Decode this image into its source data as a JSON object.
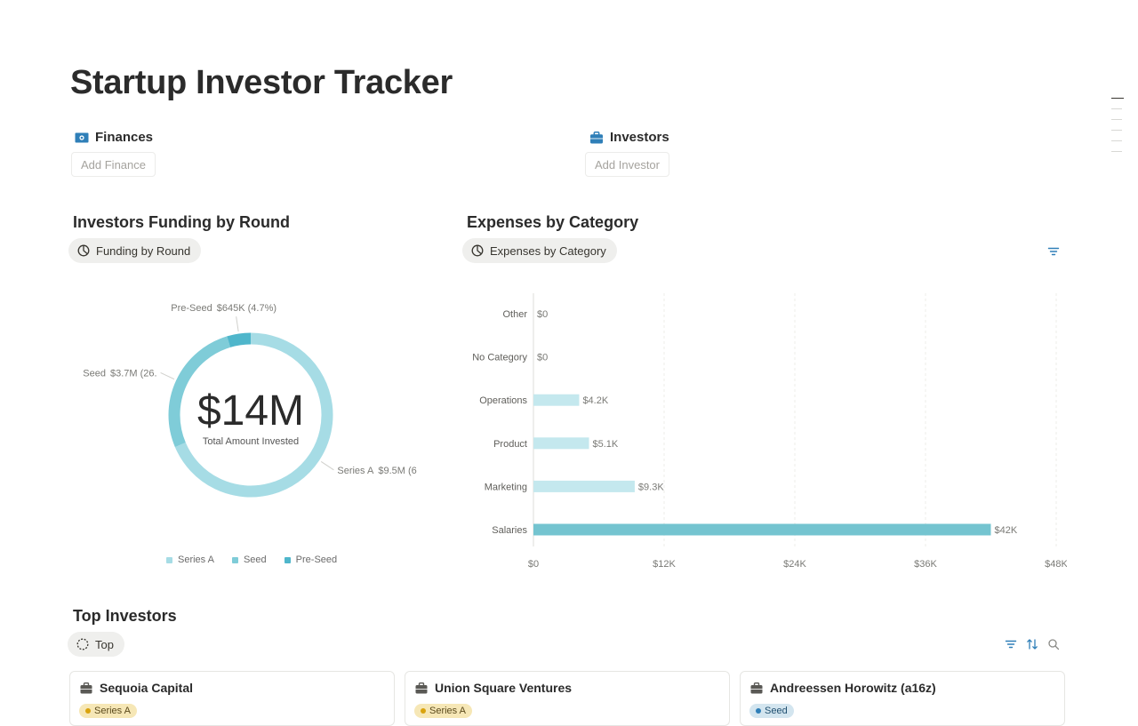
{
  "page": {
    "title": "Startup Investor Tracker"
  },
  "finances": {
    "label": "Finances",
    "add_label": "Add Finance"
  },
  "investors": {
    "label": "Investors",
    "add_label": "Add Investor"
  },
  "funding": {
    "title": "Investors Funding by Round",
    "view_label": "Funding by Round",
    "center_value": "$14M",
    "center_label": "Total Amount Invested"
  },
  "expenses": {
    "title": "Expenses by Category",
    "view_label": "Expenses by Category"
  },
  "top_investors": {
    "title": "Top Investors",
    "view_label": "Top",
    "cards": [
      {
        "name": "Sequoia Capital",
        "round": "Series A",
        "tag_bg": "#f6e7b6",
        "dot": "#d9a30e"
      },
      {
        "name": "Union Square Ventures",
        "round": "Series A",
        "tag_bg": "#f6e7b6",
        "dot": "#d9a30e"
      },
      {
        "name": "Andreessen Horowitz (a16z)",
        "round": "Seed",
        "tag_bg": "#d3e5ef",
        "dot": "#2f7fb8"
      }
    ]
  },
  "colors": {
    "series_a": "#a6dce5",
    "seed": "#7fccd8",
    "pre_seed": "#4fb6cb",
    "bar_light": "#c4e8ee",
    "bar_dark": "#74c4d0",
    "accent": "#2f7fb8"
  },
  "chart_data": [
    {
      "type": "pie",
      "variant": "donut",
      "slices": [
        {
          "name": "Series A",
          "value": 9.5,
          "label": "Series A",
          "value_label": "$9.5M (6",
          "color": "#a6dce5"
        },
        {
          "name": "Seed",
          "value": 3.7,
          "label": "Seed",
          "value_label": "$3.7M (26.",
          "color": "#7fccd8"
        },
        {
          "name": "Pre-Seed",
          "value": 0.645,
          "label": "Pre-Seed",
          "value_label": "$645K (4.7%)",
          "color": "#4fb6cb"
        }
      ],
      "legend": [
        "Series A",
        "Seed",
        "Pre-Seed"
      ],
      "legend_position": "bottom"
    },
    {
      "type": "bar",
      "orientation": "horizontal",
      "categories": [
        "Other",
        "No Category",
        "Operations",
        "Product",
        "Marketing",
        "Salaries"
      ],
      "values": [
        0,
        0,
        4200,
        5100,
        9300,
        42000
      ],
      "value_labels": [
        "$0",
        "$0",
        "$4.2K",
        "$5.1K",
        "$9.3K",
        "$42K"
      ],
      "x_ticks": [
        "$0",
        "$12K",
        "$24K",
        "$36K",
        "$48K"
      ],
      "xlim": [
        0,
        48000
      ],
      "grid": true
    }
  ]
}
